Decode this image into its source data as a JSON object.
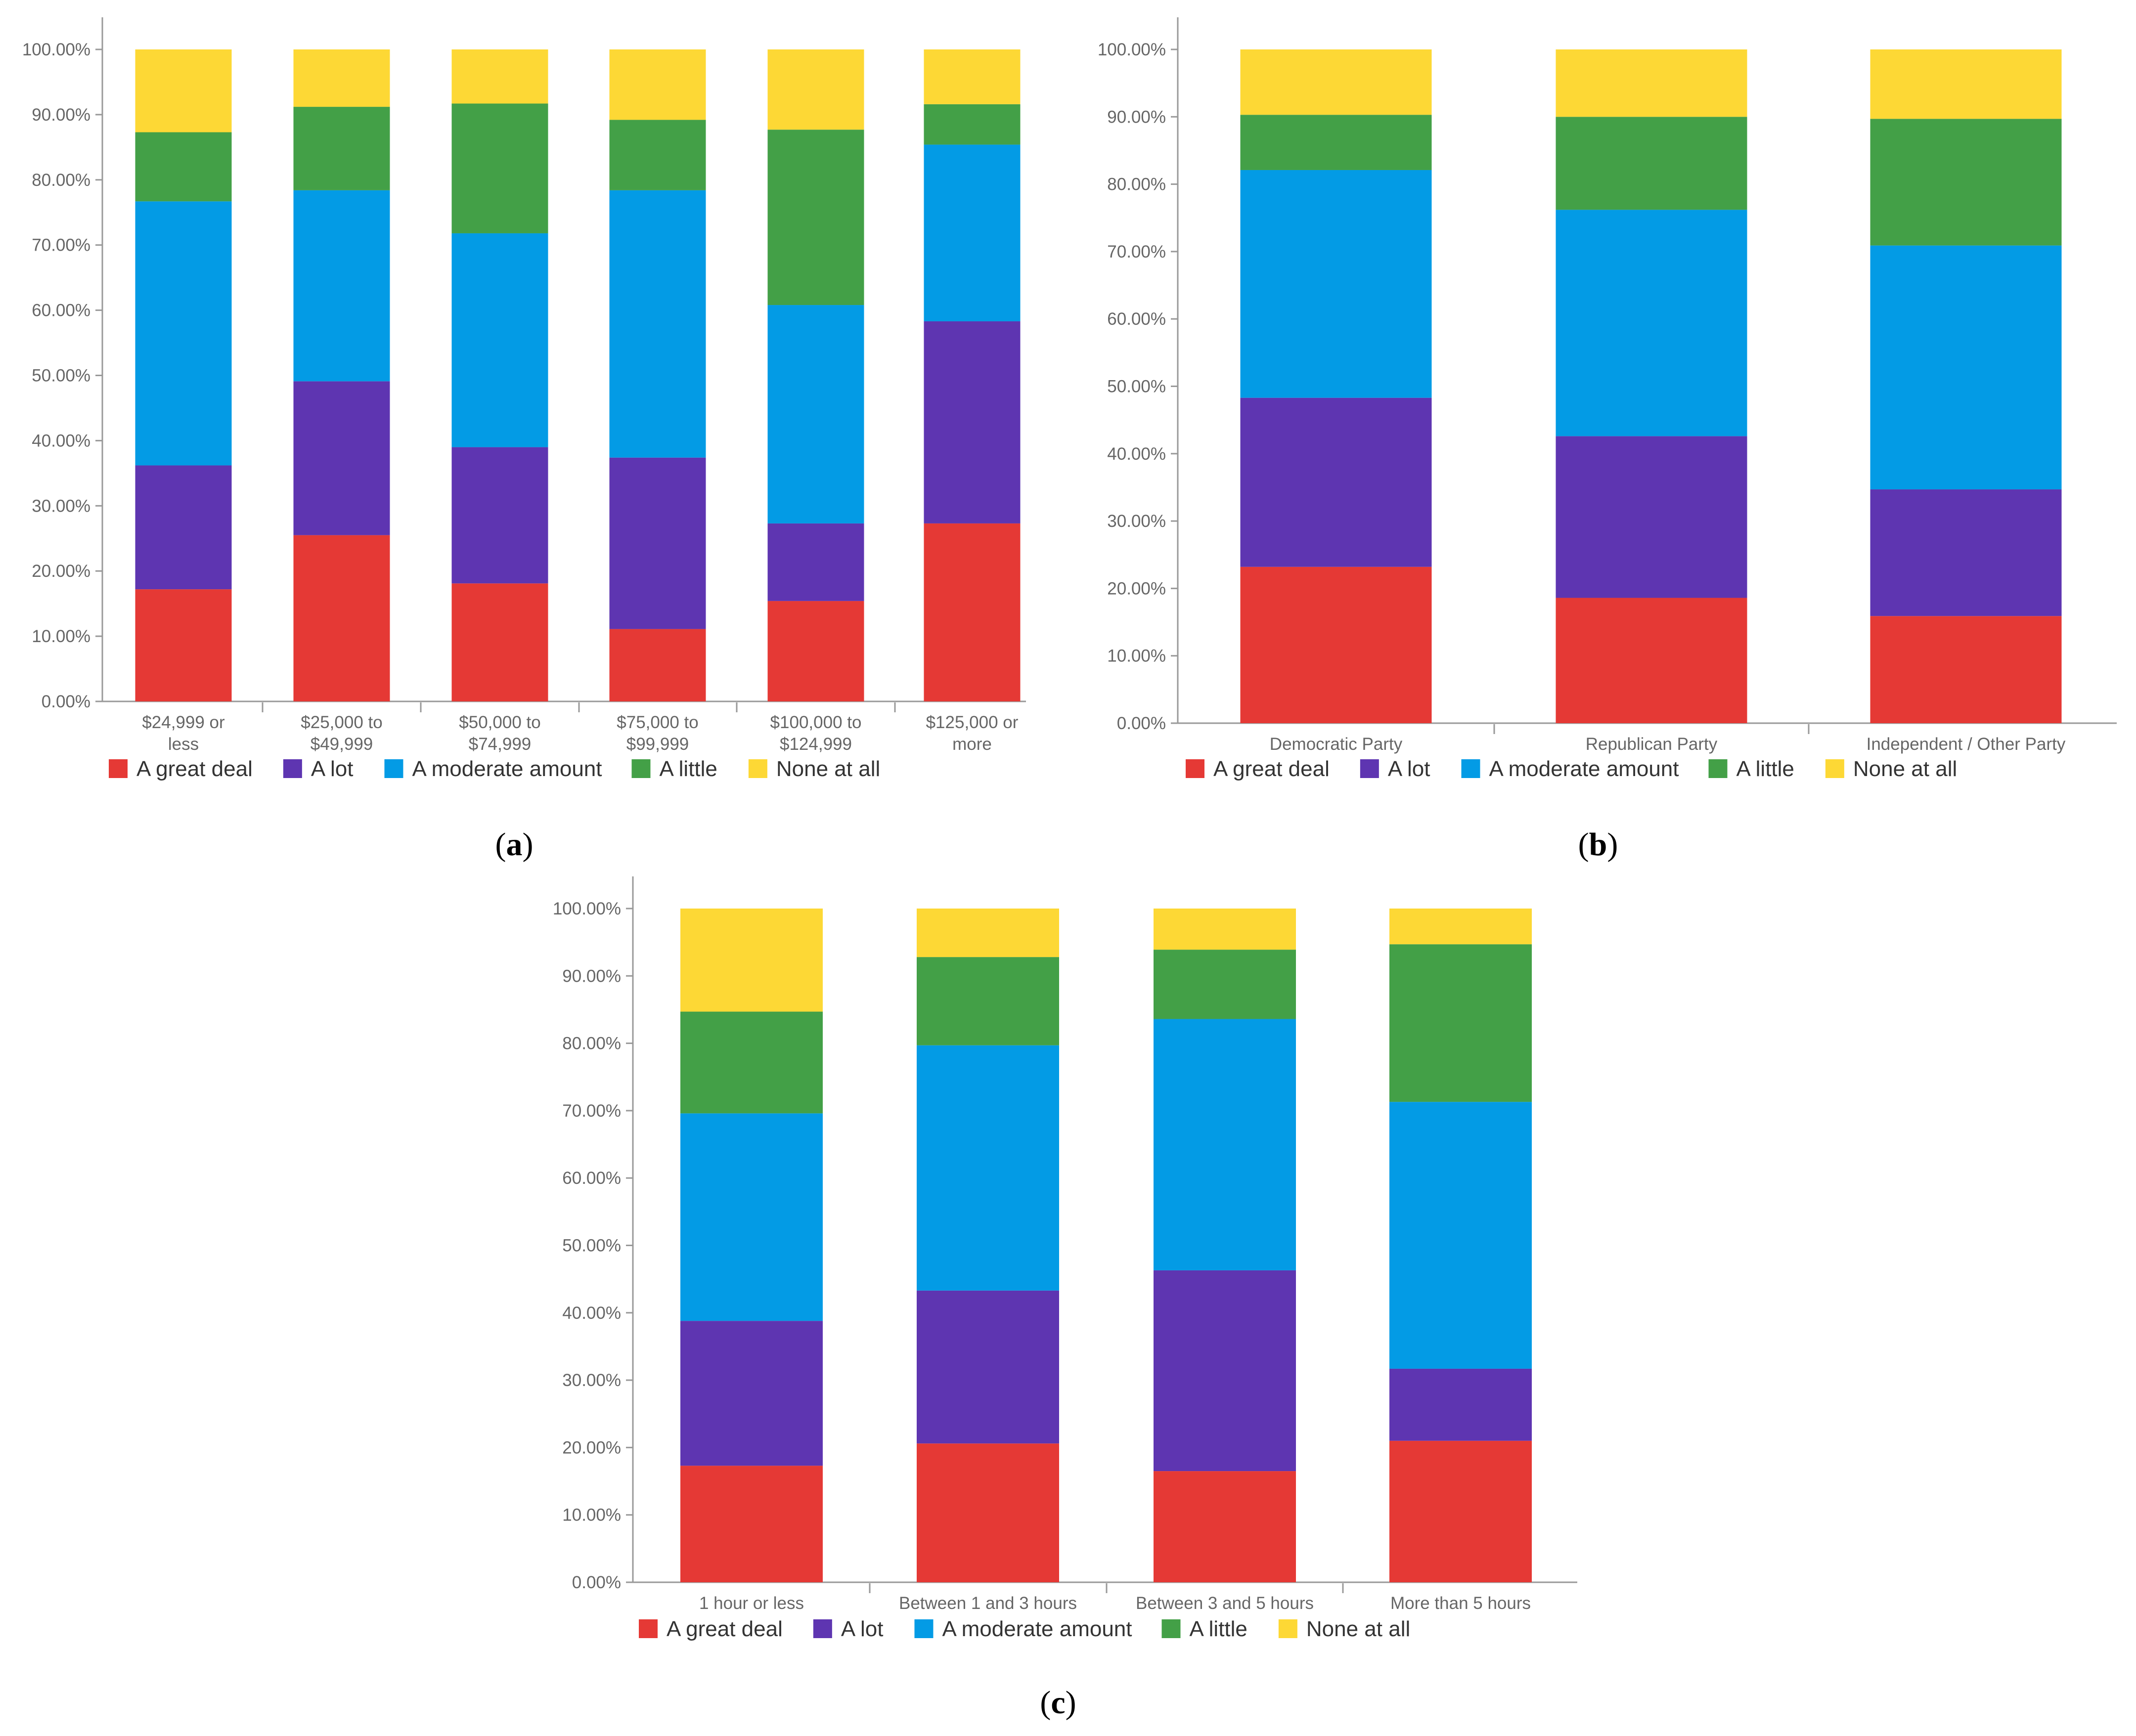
{
  "legend": [
    {
      "label": "A great deal",
      "color": "#E53935"
    },
    {
      "label": "A lot",
      "color": "#5E35B1"
    },
    {
      "label": "A moderate amount",
      "color": "#039BE5"
    },
    {
      "label": "A little",
      "color": "#43A047"
    },
    {
      "label": "None at all",
      "color": "#FDD835"
    }
  ],
  "chart_data": [
    {
      "panel": "a",
      "type": "bar",
      "stacked": true,
      "ylim": [
        0,
        100
      ],
      "yticks": [
        "0.00%",
        "10.00%",
        "20.00%",
        "30.00%",
        "40.00%",
        "50.00%",
        "60.00%",
        "70.00%",
        "80.00%",
        "90.00%",
        "100.00%"
      ],
      "categories": [
        [
          "$24,999 or",
          "less"
        ],
        [
          "$25,000 to",
          "$49,999"
        ],
        [
          "$50,000 to",
          "$74,999"
        ],
        [
          "$75,000 to",
          "$99,999"
        ],
        [
          "$100,000 to",
          "$124,999"
        ],
        [
          "$125,000 or",
          "more"
        ]
      ],
      "series": [
        {
          "name": "A great deal",
          "values": [
            17.2,
            25.5,
            18.1,
            11.1,
            15.4,
            27.3
          ]
        },
        {
          "name": "A lot",
          "values": [
            19.0,
            23.6,
            20.9,
            26.3,
            11.9,
            31.0
          ]
        },
        {
          "name": "A moderate amount",
          "values": [
            40.5,
            29.3,
            32.8,
            41.0,
            33.5,
            27.1
          ]
        },
        {
          "name": "A little",
          "values": [
            10.6,
            12.8,
            19.9,
            10.8,
            26.9,
            6.2
          ]
        },
        {
          "name": "None at all",
          "values": [
            12.7,
            8.8,
            8.3,
            10.8,
            12.3,
            8.4
          ]
        }
      ],
      "legend_position": "bottom",
      "grid": false
    },
    {
      "panel": "b",
      "type": "bar",
      "stacked": true,
      "ylim": [
        0,
        100
      ],
      "yticks": [
        "0.00%",
        "10.00%",
        "20.00%",
        "30.00%",
        "40.00%",
        "50.00%",
        "60.00%",
        "70.00%",
        "80.00%",
        "90.00%",
        "100.00%"
      ],
      "categories": [
        [
          "Democratic Party"
        ],
        [
          "Republican Party"
        ],
        [
          "Independent / Other Party"
        ]
      ],
      "series": [
        {
          "name": "A great deal",
          "values": [
            23.2,
            18.6,
            15.9
          ]
        },
        {
          "name": "A lot",
          "values": [
            25.1,
            24.0,
            18.8
          ]
        },
        {
          "name": "A moderate amount",
          "values": [
            33.8,
            33.6,
            36.2
          ]
        },
        {
          "name": "A little",
          "values": [
            8.2,
            13.8,
            18.8
          ]
        },
        {
          "name": "None at all",
          "values": [
            9.7,
            10.0,
            10.3
          ]
        }
      ],
      "legend_position": "bottom",
      "grid": false
    },
    {
      "panel": "c",
      "type": "bar",
      "stacked": true,
      "ylim": [
        0,
        100
      ],
      "yticks": [
        "0.00%",
        "10.00%",
        "20.00%",
        "30.00%",
        "40.00%",
        "50.00%",
        "60.00%",
        "70.00%",
        "80.00%",
        "90.00%",
        "100.00%"
      ],
      "categories": [
        [
          "1 hour or less"
        ],
        [
          "Between 1 and 3 hours"
        ],
        [
          "Between 3 and 5 hours"
        ],
        [
          "More than 5 hours"
        ]
      ],
      "series": [
        {
          "name": "A great deal",
          "values": [
            17.3,
            20.6,
            16.5,
            21.0
          ]
        },
        {
          "name": "A lot",
          "values": [
            21.5,
            22.7,
            29.8,
            10.7
          ]
        },
        {
          "name": "A moderate amount",
          "values": [
            30.8,
            36.4,
            37.3,
            39.6
          ]
        },
        {
          "name": "A little",
          "values": [
            15.1,
            13.1,
            10.3,
            23.4
          ]
        },
        {
          "name": "None at all",
          "values": [
            15.3,
            7.2,
            6.1,
            5.3
          ]
        }
      ],
      "legend_position": "bottom",
      "grid": false
    }
  ],
  "panel_labels": [
    "a",
    "b",
    "c"
  ]
}
